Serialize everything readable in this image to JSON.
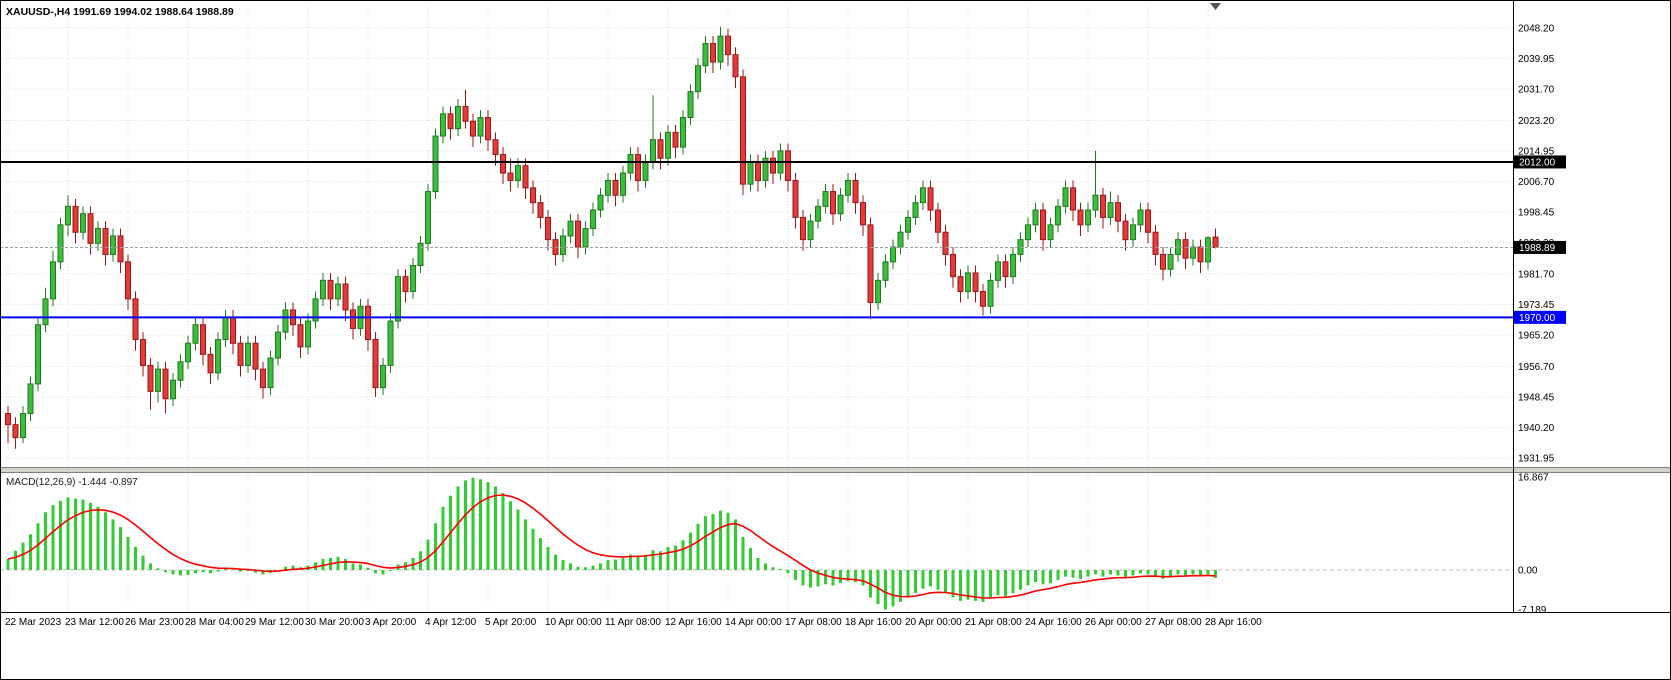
{
  "title": {
    "symbol_period": "XAUUSD-,H4",
    "ohlc": "1991.69 1994.02 1988.64 1988.89"
  },
  "chart_data": {
    "type": "candlestick",
    "symbol": "XAUUSD-",
    "timeframe": "H4",
    "current_bar": {
      "open": 1991.69,
      "high": 1994.02,
      "low": 1988.64,
      "close": 1988.89
    },
    "bars_per_label": 8,
    "price_axis_labels": [
      "2048.20",
      "2039.95",
      "2031.70",
      "2023.20",
      "2014.95",
      "2006.70",
      "1998.45",
      "1990.20",
      "1981.70",
      "1973.45",
      "1965.20",
      "1956.70",
      "1948.45",
      "1940.20",
      "1931.95"
    ],
    "horizontal_lines": [
      {
        "price": 2012.0,
        "label": "2012.00",
        "color": "#000000",
        "badge_bg": "#000000"
      },
      {
        "price": 1970.0,
        "label": "1970.00",
        "color": "#0000ff",
        "badge_bg": "#0000ff"
      }
    ],
    "bid_price": {
      "value": 1988.89,
      "label": "1988.89"
    },
    "time_axis_labels": [
      {
        "bar": 0,
        "text": "22 Mar 2023"
      },
      {
        "bar": 8,
        "text": "23 Mar 12:00"
      },
      {
        "bar": 16,
        "text": "26 Mar 23:00"
      },
      {
        "bar": 24,
        "text": "28 Mar 04:00"
      },
      {
        "bar": 32,
        "text": "29 Mar 12:00"
      },
      {
        "bar": 40,
        "text": "30 Mar 20:00"
      },
      {
        "bar": 48,
        "text": "3 Apr 20:00"
      },
      {
        "bar": 56,
        "text": "4 Apr 12:00"
      },
      {
        "bar": 64,
        "text": "5 Apr 20:00"
      },
      {
        "bar": 72,
        "text": "10 Apr 00:00"
      },
      {
        "bar": 80,
        "text": "11 Apr 08:00"
      },
      {
        "bar": 88,
        "text": "12 Apr 16:00"
      },
      {
        "bar": 96,
        "text": "14 Apr 00:00"
      },
      {
        "bar": 104,
        "text": "17 Apr 08:00"
      },
      {
        "bar": 112,
        "text": "18 Apr 16:00"
      },
      {
        "bar": 120,
        "text": "20 Apr 00:00"
      },
      {
        "bar": 128,
        "text": "21 Apr 08:00"
      },
      {
        "bar": 136,
        "text": "24 Apr 16:00"
      },
      {
        "bar": 144,
        "text": "26 Apr 00:00"
      },
      {
        "bar": 152,
        "text": "27 Apr 08:00"
      },
      {
        "bar": 160,
        "text": "28 Apr 16:00"
      }
    ],
    "candles": [
      [
        1944,
        1946,
        1936,
        1941
      ],
      [
        1941,
        1943,
        1934.5,
        1937.5
      ],
      [
        1937.5,
        1946,
        1936,
        1944
      ],
      [
        1944,
        1954,
        1942,
        1952
      ],
      [
        1952,
        1970,
        1950,
        1968
      ],
      [
        1968,
        1978,
        1966,
        1975
      ],
      [
        1975,
        1988,
        1973,
        1985
      ],
      [
        1985,
        1997,
        1983,
        1995
      ],
      [
        1995,
        2003,
        1992,
        2000
      ],
      [
        2000,
        2002,
        1990,
        1993
      ],
      [
        1993,
        2000,
        1991,
        1998
      ],
      [
        1998,
        2000,
        1987,
        1990
      ],
      [
        1990,
        1996,
        1988,
        1994
      ],
      [
        1994,
        1996,
        1984,
        1987
      ],
      [
        1987,
        1994,
        1985,
        1992
      ],
      [
        1992,
        1994,
        1982,
        1985
      ],
      [
        1985,
        1987,
        1972,
        1975
      ],
      [
        1975,
        1977,
        1961,
        1964
      ],
      [
        1964,
        1966,
        1954,
        1957
      ],
      [
        1957,
        1959,
        1945,
        1950
      ],
      [
        1950,
        1958,
        1947,
        1956
      ],
      [
        1956,
        1958,
        1944,
        1948
      ],
      [
        1948,
        1955,
        1946,
        1953
      ],
      [
        1953,
        1960,
        1951,
        1958
      ],
      [
        1958,
        1965,
        1956,
        1963
      ],
      [
        1963,
        1970,
        1961,
        1968
      ],
      [
        1968,
        1970,
        1957,
        1960
      ],
      [
        1960,
        1962,
        1952,
        1955
      ],
      [
        1955,
        1966,
        1953,
        1964
      ],
      [
        1964,
        1972,
        1962,
        1970
      ],
      [
        1970,
        1972,
        1960,
        1963
      ],
      [
        1963,
        1965,
        1954,
        1957
      ],
      [
        1957,
        1965,
        1955,
        1963
      ],
      [
        1963,
        1965,
        1953,
        1956
      ],
      [
        1956,
        1958,
        1948,
        1951
      ],
      [
        1951,
        1961,
        1949,
        1959
      ],
      [
        1959,
        1968,
        1957,
        1966
      ],
      [
        1966,
        1974,
        1964,
        1972
      ],
      [
        1972,
        1974,
        1965,
        1968
      ],
      [
        1968,
        1970,
        1959,
        1962
      ],
      [
        1962,
        1971,
        1960,
        1969
      ],
      [
        1969,
        1977,
        1967,
        1975
      ],
      [
        1975,
        1982,
        1973,
        1980
      ],
      [
        1980,
        1982,
        1972,
        1975
      ],
      [
        1975,
        1981,
        1973,
        1979
      ],
      [
        1979,
        1981,
        1969,
        1972
      ],
      [
        1972,
        1974,
        1964,
        1967
      ],
      [
        1967,
        1975,
        1965,
        1973
      ],
      [
        1973,
        1975,
        1961,
        1964
      ],
      [
        1964,
        1966,
        1948.5,
        1951
      ],
      [
        1951,
        1959,
        1949,
        1957
      ],
      [
        1957,
        1971,
        1955,
        1969
      ],
      [
        1969,
        1983,
        1967,
        1981
      ],
      [
        1981,
        1983,
        1974,
        1977
      ],
      [
        1977,
        1986,
        1975,
        1984
      ],
      [
        1984,
        1992,
        1982,
        1990
      ],
      [
        1990,
        2006,
        1988,
        2004
      ],
      [
        2004,
        2021,
        2002,
        2019
      ],
      [
        2019,
        2027,
        2017,
        2025
      ],
      [
        2025,
        2027,
        2018,
        2021
      ],
      [
        2021,
        2029,
        2019,
        2027
      ],
      [
        2027,
        2031.5,
        2021,
        2023
      ],
      [
        2023,
        2025,
        2016,
        2019
      ],
      [
        2019,
        2026,
        2017,
        2024
      ],
      [
        2024,
        2026,
        2015,
        2018
      ],
      [
        2018,
        2020,
        2011,
        2014
      ],
      [
        2014,
        2016,
        2006,
        2009
      ],
      [
        2009,
        2013,
        2004,
        2007
      ],
      [
        2007,
        2013,
        2005,
        2011
      ],
      [
        2011,
        2013,
        2002,
        2005
      ],
      [
        2005,
        2007,
        1998,
        2001
      ],
      [
        2001,
        2003,
        1994,
        1997
      ],
      [
        1997,
        1999,
        1988,
        1991
      ],
      [
        1991,
        1993,
        1984,
        1987
      ],
      [
        1987,
        1994,
        1985,
        1992
      ],
      [
        1992,
        1998,
        1990,
        1996
      ],
      [
        1996,
        1998,
        1986,
        1989
      ],
      [
        1989,
        1996,
        1987,
        1994
      ],
      [
        1994,
        2001,
        1992,
        1999
      ],
      [
        1999,
        2005,
        1997,
        2003
      ],
      [
        2003,
        2009,
        2001,
        2007
      ],
      [
        2007,
        2009,
        2000,
        2003
      ],
      [
        2003,
        2011,
        2001,
        2009
      ],
      [
        2009,
        2016,
        2007,
        2014
      ],
      [
        2014,
        2016,
        2004,
        2007
      ],
      [
        2007,
        2014,
        2005,
        2012
      ],
      [
        2012,
        2030,
        2010,
        2018
      ],
      [
        2018,
        2020,
        2010,
        2013
      ],
      [
        2013,
        2022,
        2011,
        2020
      ],
      [
        2020,
        2022,
        2013,
        2016
      ],
      [
        2016,
        2026,
        2014,
        2024
      ],
      [
        2024,
        2033,
        2022,
        2031
      ],
      [
        2031,
        2040,
        2029,
        2038
      ],
      [
        2038,
        2046,
        2036,
        2044
      ],
      [
        2044,
        2046,
        2036,
        2039
      ],
      [
        2039,
        2048.5,
        2037,
        2046
      ],
      [
        2046,
        2048,
        2038,
        2041
      ],
      [
        2041,
        2043,
        2032,
        2035
      ],
      [
        2035,
        2037,
        2003,
        2006
      ],
      [
        2006,
        2014,
        2004,
        2012
      ],
      [
        2012,
        2014,
        2004,
        2007
      ],
      [
        2007,
        2015,
        2005,
        2013
      ],
      [
        2013,
        2015,
        2006,
        2009
      ],
      [
        2009,
        2017,
        2007,
        2015
      ],
      [
        2015,
        2017,
        2004,
        2007
      ],
      [
        2007,
        2009,
        1994,
        1997
      ],
      [
        1997,
        1999,
        1988,
        1991
      ],
      [
        1991,
        1998,
        1989,
        1996
      ],
      [
        1996,
        2002,
        1994,
        2000
      ],
      [
        2000,
        2006,
        1998,
        2004
      ],
      [
        2004,
        2006,
        1995,
        1998
      ],
      [
        1998,
        2005,
        1996,
        2003
      ],
      [
        2003,
        2009,
        2001,
        2007
      ],
      [
        2007,
        2009,
        1998,
        2001
      ],
      [
        2001,
        2003,
        1992,
        1995
      ],
      [
        1995,
        1997,
        1969.5,
        1974
      ],
      [
        1974,
        1982,
        1972,
        1980
      ],
      [
        1980,
        1987,
        1978,
        1985
      ],
      [
        1985,
        1991,
        1983,
        1989
      ],
      [
        1989,
        1995,
        1987,
        1993
      ],
      [
        1993,
        1999,
        1991,
        1997
      ],
      [
        1997,
        2003,
        1995,
        2001
      ],
      [
        2001,
        2007,
        1999,
        2005
      ],
      [
        2005,
        2007,
        1996,
        1999
      ],
      [
        1999,
        2001,
        1990,
        1993
      ],
      [
        1993,
        1995,
        1984,
        1987
      ],
      [
        1987,
        1989,
        1978,
        1981
      ],
      [
        1981,
        1983,
        1974,
        1977
      ],
      [
        1977,
        1984,
        1975,
        1982
      ],
      [
        1982,
        1984,
        1974,
        1977
      ],
      [
        1977,
        1979,
        1970.5,
        1973
      ],
      [
        1973,
        1982,
        1971,
        1980
      ],
      [
        1980,
        1987,
        1978,
        1985
      ],
      [
        1985,
        1987,
        1978,
        1981
      ],
      [
        1981,
        1989,
        1979,
        1987
      ],
      [
        1987,
        1993,
        1985,
        1991
      ],
      [
        1991,
        1997,
        1989,
        1995
      ],
      [
        1995,
        2001,
        1993,
        1999
      ],
      [
        1999,
        2001,
        1988,
        1991
      ],
      [
        1991,
        1997,
        1989,
        1995
      ],
      [
        1995,
        2002,
        1993,
        2000
      ],
      [
        2000,
        2007,
        1998,
        2005
      ],
      [
        2005,
        2007,
        1996,
        1999
      ],
      [
        1999,
        2001,
        1992,
        1995
      ],
      [
        1995,
        2001,
        1993,
        1999
      ],
      [
        1999,
        2015,
        1997,
        2003
      ],
      [
        2003,
        2005,
        1994,
        1997
      ],
      [
        1997,
        2004,
        1995,
        2001
      ],
      [
        2001,
        2003,
        1993,
        1996
      ],
      [
        1996,
        1998,
        1988,
        1991
      ],
      [
        1991,
        1997,
        1989,
        1995
      ],
      [
        1995,
        2001,
        1993,
        1999
      ],
      [
        1999,
        2001,
        1990,
        1993
      ],
      [
        1993,
        1995,
        1984,
        1987
      ],
      [
        1987,
        1989,
        1980,
        1983
      ],
      [
        1983,
        1989,
        1981,
        1987
      ],
      [
        1987,
        1993,
        1985,
        1991
      ],
      [
        1991,
        1993,
        1983,
        1986
      ],
      [
        1986,
        1991,
        1984,
        1989
      ],
      [
        1989,
        1991,
        1982,
        1985
      ],
      [
        1985,
        1992,
        1983,
        1991.5
      ],
      [
        1991.69,
        1994.02,
        1988.64,
        1988.89
      ]
    ],
    "macd": {
      "label": "MACD(12,26,9)",
      "main_value_str": "-1.444",
      "signal_value_str": "-0.897",
      "axis_labels": [
        "16.867",
        "0.00",
        "-7.189"
      ],
      "signal_ema_period": 9,
      "histogram": [
        2,
        3.5,
        5,
        6.5,
        8.5,
        10.5,
        11.8,
        12.6,
        13.2,
        13,
        12.8,
        12.2,
        11.5,
        10.5,
        9.2,
        7.8,
        6,
        4.2,
        2.6,
        1.2,
        0.3,
        -0.4,
        -0.8,
        -1,
        -0.9,
        -0.6,
        -0.4,
        -0.6,
        -0.3,
        0.2,
        0.1,
        -0.3,
        -0.2,
        -0.5,
        -0.8,
        -0.5,
        0,
        0.6,
        0.8,
        0.5,
        0.8,
        1.4,
        2,
        2.2,
        2.4,
        2,
        1.2,
        1,
        0.4,
        -0.6,
        -0.8,
        -0.2,
        1,
        1.4,
        2.2,
        3.4,
        5.5,
        8.5,
        11.5,
        13.5,
        15.2,
        16.3,
        16.8,
        16.5,
        16,
        15.2,
        14,
        12.5,
        11,
        9.2,
        7.5,
        5.8,
        4.2,
        2.8,
        1.8,
        1.2,
        0.6,
        0.5,
        0.8,
        1.2,
        1.8,
        1.9,
        2.2,
        2.8,
        2.6,
        2.8,
        3.6,
        3.4,
        4.2,
        4.4,
        5.4,
        6.8,
        8.4,
        9.8,
        10.2,
        10.8,
        10.4,
        9.2,
        6,
        4,
        2.2,
        1.2,
        0.5,
        0.2,
        -0.6,
        -1.8,
        -2.8,
        -3.2,
        -3,
        -2.6,
        -2.8,
        -2.4,
        -2,
        -2.2,
        -2.8,
        -5,
        -6.2,
        -7.2,
        -6.6,
        -5.8,
        -5,
        -4.2,
        -3.4,
        -3,
        -3.6,
        -4.2,
        -5,
        -5.6,
        -5.4,
        -5.6,
        -5.8,
        -5.2,
        -4.6,
        -4.8,
        -4.2,
        -3.6,
        -2.8,
        -2.2,
        -2.6,
        -2.4,
        -1.8,
        -1.2,
        -1.4,
        -1.6,
        -1.2,
        -0.8,
        -1.2,
        -0.8,
        -1,
        -1.4,
        -1,
        -0.6,
        -0.8,
        -1.2,
        -1.6,
        -1.2,
        -0.8,
        -1,
        -0.8,
        -1,
        -0.8,
        -1.444
      ]
    }
  },
  "colors": {
    "bull_fill": "#3dbd3d",
    "bull_border": "#1d7a1d",
    "bear_fill": "#e23b3b",
    "bear_border": "#9e1515",
    "grid": "#dcdcdc",
    "macd_hist": "#32cd32",
    "macd_signal": "#ff0000",
    "bid_line": "#9c9c9c",
    "axis_text": "#000000",
    "badge_black": "#000000",
    "badge_blue": "#0000ff"
  },
  "icons": {
    "chart_shift_marker": "small dark triangle at top of chart shift position"
  }
}
